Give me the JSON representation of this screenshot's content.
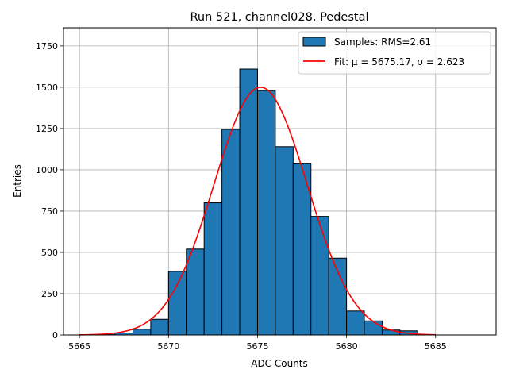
{
  "chart_data": {
    "type": "bar",
    "title": "Run 521, channel028, Pedestal",
    "xlabel": "ADC Counts",
    "ylabel": "Entries",
    "xlim": [
      5664.1,
      5688.4
    ],
    "ylim": [
      0,
      1860
    ],
    "xticks": [
      5665,
      5670,
      5675,
      5680,
      5685
    ],
    "xtick_labels": [
      "5665",
      "5670",
      "5675",
      "5680",
      "5685"
    ],
    "yticks": [
      0,
      250,
      500,
      750,
      1000,
      1250,
      1500,
      1750
    ],
    "ytick_labels": [
      "0",
      "250",
      "500",
      "750",
      "1000",
      "1250",
      "1500",
      "1750"
    ],
    "grid": true,
    "legend_position": "top-right",
    "bin_width": 1,
    "bins": [
      {
        "left": 5666,
        "count": 2
      },
      {
        "left": 5667,
        "count": 12
      },
      {
        "left": 5668,
        "count": 35
      },
      {
        "left": 5669,
        "count": 95
      },
      {
        "left": 5670,
        "count": 385
      },
      {
        "left": 5671,
        "count": 520
      },
      {
        "left": 5672,
        "count": 800
      },
      {
        "left": 5673,
        "count": 1245
      },
      {
        "left": 5674,
        "count": 1610
      },
      {
        "left": 5675,
        "count": 1480
      },
      {
        "left": 5676,
        "count": 1140
      },
      {
        "left": 5677,
        "count": 1040
      },
      {
        "left": 5678,
        "count": 718
      },
      {
        "left": 5679,
        "count": 465
      },
      {
        "left": 5680,
        "count": 145
      },
      {
        "left": 5681,
        "count": 85
      },
      {
        "left": 5682,
        "count": 30
      },
      {
        "left": 5683,
        "count": 25
      }
    ],
    "fit": {
      "mu": 5675.17,
      "sigma": 2.623,
      "peak": 1500,
      "x_range": [
        5665,
        5685
      ]
    },
    "series": [
      {
        "name": "Samples: RMS=2.61",
        "type": "histogram",
        "color": "#1f77b4",
        "edge_color": "#000000"
      },
      {
        "name": "Fit: μ = 5675.17, σ = 2.623",
        "type": "line",
        "color": "#ff0000"
      }
    ]
  }
}
